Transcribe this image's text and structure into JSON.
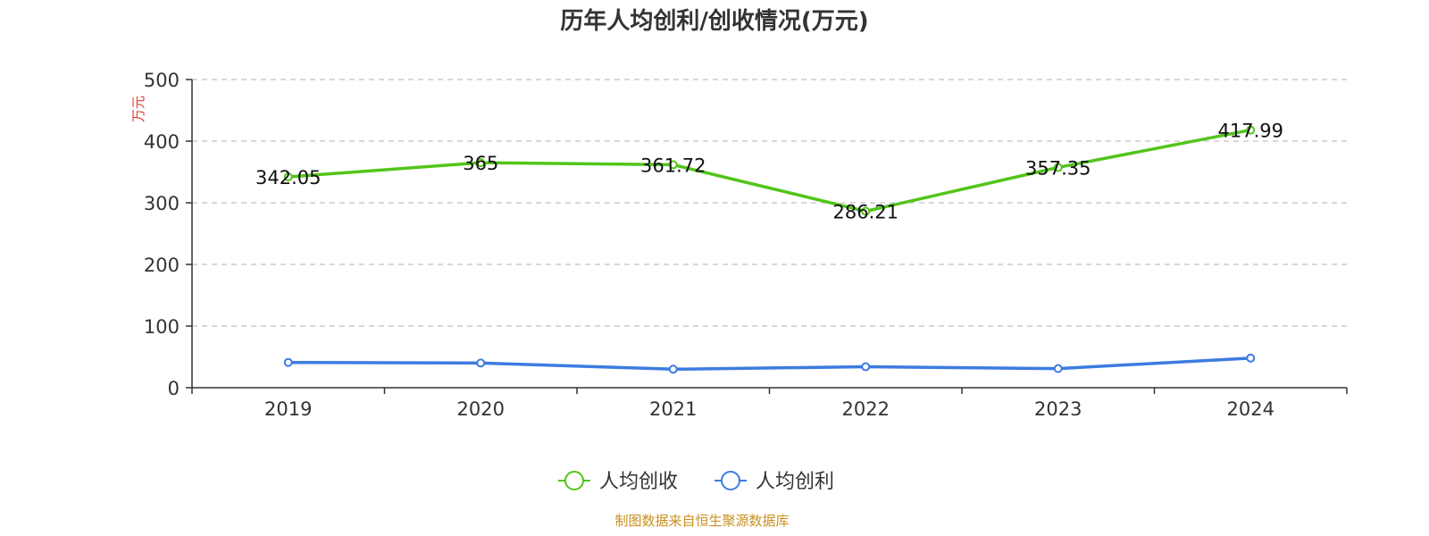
{
  "chart_data": {
    "type": "line",
    "title": "历年人均创利/创收情况(万元)",
    "ylabel": "万元",
    "ylim": [
      0,
      500
    ],
    "yticks": [
      0,
      100,
      200,
      300,
      400,
      500
    ],
    "categories": [
      "2019",
      "2020",
      "2021",
      "2022",
      "2023",
      "2024"
    ],
    "grid": true,
    "legend_position": "bottom",
    "series": [
      {
        "name": "人均创收",
        "color": "#52c41a",
        "values": [
          342.05,
          365,
          361.72,
          286.21,
          357.35,
          417.99
        ],
        "labels": [
          "342.05",
          "365",
          "361.72",
          "286.21",
          "357.35",
          "417.99"
        ],
        "show_labels": true
      },
      {
        "name": "人均创利",
        "color": "#3d7be0",
        "values": [
          41,
          40,
          30,
          34,
          31,
          48
        ],
        "show_labels": false
      }
    ]
  },
  "source": "制图数据来自恒生聚源数据库",
  "colors": {
    "axis": "#333333",
    "grid": "#cccccc",
    "unit": "#e23a2e",
    "source": "#c8901e"
  }
}
